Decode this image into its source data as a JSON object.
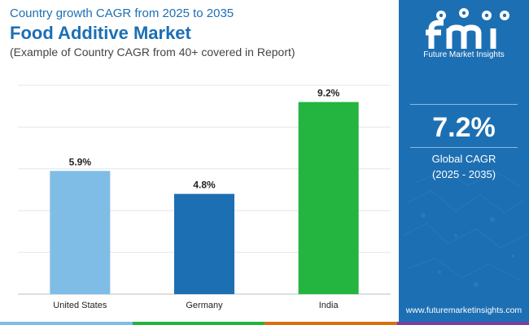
{
  "header": {
    "subtitle": "Country growth CAGR from 2025 to 2035",
    "title": "Food Additive Market",
    "note": "(Example of Country CAGR from 40+ covered in Report)"
  },
  "chart_data": {
    "type": "bar",
    "categories": [
      "United States",
      "Germany",
      "India"
    ],
    "values": [
      5.9,
      4.8,
      9.2
    ],
    "data_labels": [
      "5.9%",
      "4.8%",
      "9.2%"
    ],
    "colors": [
      "#7fbde6",
      "#1d6fb3",
      "#23b540"
    ],
    "ylim": [
      0,
      10
    ],
    "grid": true,
    "title": "",
    "xlabel": "",
    "ylabel": ""
  },
  "side_panel": {
    "logo_word": "fmi",
    "logo_caption": "Future Market Insights",
    "global_value": "7.2%",
    "global_label": "Global CAGR",
    "global_period": "(2025 - 2035)",
    "website": "www.futuremarketinsights.com"
  },
  "colors": {
    "brand_blue": "#1d6fb3",
    "footer": [
      "#7fbde6",
      "#23b540",
      "#d9700f",
      "#7b3fa0"
    ]
  },
  "icons": [
    "fmi-logo-icon"
  ]
}
